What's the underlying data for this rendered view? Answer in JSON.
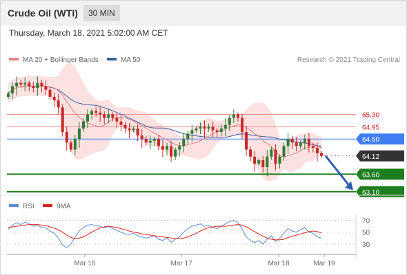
{
  "header": {
    "title": "Crude Oil (WTI)",
    "timeframe": "30 MIN",
    "datetime": "Thursday, March 18, 2021 5:02:00 AM CET"
  },
  "legend": {
    "ma20_bb": "MA 20 + Bollinger Bands",
    "ma50": "MA 50",
    "copyright": "Research © 2021 Trading Central",
    "rsi": "RSI",
    "ma9": "9MA"
  },
  "colors": {
    "ma20": "#f08080",
    "ma50": "#3a5fa0",
    "bollinger": "#fcdcdc",
    "resistance": "#f09090",
    "pivot": "#3f7ef5",
    "support": "#1e7e1e",
    "current": "#333333",
    "candle_up": "#2e7d32",
    "candle_down": "#c62828",
    "rsi": "#5b8bd4",
    "rsi_ma": "#e02020",
    "arrow": "#2f5fb0"
  },
  "chart_data": [
    {
      "type": "candlestick",
      "instrument": "Crude Oil (WTI)",
      "timeframe": "30 MIN",
      "x_ticks": [
        "Mar 16",
        "Mar 17",
        "Mar 18",
        "Mar 19"
      ],
      "price_levels": [
        {
          "label": "65.30",
          "value": 65.3,
          "kind": "resistance"
        },
        {
          "label": "64.95",
          "value": 64.95,
          "kind": "resistance"
        },
        {
          "label": "64.60",
          "value": 64.6,
          "kind": "pivot"
        },
        {
          "label": "64.12",
          "value": 64.12,
          "kind": "current"
        },
        {
          "label": "63.60",
          "value": 63.6,
          "kind": "support"
        },
        {
          "label": "63.10",
          "value": 63.1,
          "kind": "support"
        }
      ],
      "close_series": [
        65.9,
        66.1,
        66.2,
        66.15,
        66.2,
        66.1,
        66.05,
        66.2,
        66.1,
        66.0,
        65.8,
        65.7,
        65.5,
        64.8,
        64.5,
        64.3,
        64.6,
        64.9,
        65.1,
        65.3,
        65.4,
        65.35,
        65.3,
        65.2,
        65.3,
        65.2,
        65.1,
        65.0,
        64.9,
        64.85,
        64.9,
        64.7,
        64.6,
        64.5,
        64.55,
        64.6,
        64.4,
        64.3,
        64.4,
        64.1,
        64.3,
        64.4,
        64.6,
        64.75,
        64.85,
        64.9,
        64.95,
        64.9,
        64.95,
        64.85,
        64.8,
        64.9,
        65.0,
        65.2,
        65.3,
        65.2,
        64.8,
        64.3,
        64.1,
        63.9,
        64.0,
        63.8,
        64.1,
        64.3,
        63.9,
        64.1,
        64.4,
        64.6,
        64.5,
        64.4,
        64.5,
        64.6,
        64.4,
        64.35,
        64.2,
        64.12
      ],
      "ylim": [
        63.0,
        66.6
      ]
    },
    {
      "type": "line",
      "name": "RSI",
      "y_ticks": [
        70,
        50,
        30
      ],
      "ylim": [
        10,
        80
      ],
      "series": [
        {
          "name": "RSI",
          "values": [
            55,
            62,
            66,
            63,
            67,
            64,
            60,
            62,
            58,
            57,
            52,
            48,
            40,
            28,
            24,
            30,
            42,
            52,
            58,
            62,
            63,
            61,
            60,
            57,
            60,
            56,
            53,
            50,
            47,
            46,
            48,
            44,
            42,
            40,
            42,
            44,
            38,
            36,
            40,
            33,
            38,
            42,
            50,
            56,
            60,
            62,
            64,
            60,
            62,
            58,
            56,
            60,
            64,
            68,
            70,
            66,
            55,
            42,
            36,
            32,
            36,
            30,
            38,
            44,
            34,
            40,
            48,
            56,
            52,
            50,
            54,
            58,
            50,
            48,
            42,
            40
          ]
        },
        {
          "name": "9MA",
          "values": [
            58,
            59,
            60,
            61,
            62,
            63,
            63,
            63,
            62,
            61,
            59,
            57,
            54,
            50,
            45,
            41,
            39,
            40,
            42,
            46,
            50,
            54,
            57,
            59,
            60,
            59,
            58,
            56,
            54,
            52,
            50,
            49,
            47,
            46,
            45,
            44,
            43,
            42,
            41,
            40,
            39,
            39,
            40,
            42,
            45,
            48,
            52,
            55,
            58,
            59,
            60,
            60,
            60,
            61,
            62,
            63,
            62,
            59,
            55,
            51,
            47,
            43,
            40,
            38,
            37,
            37,
            38,
            41,
            43,
            45,
            47,
            49,
            51,
            52,
            51,
            49
          ]
        }
      ]
    }
  ]
}
